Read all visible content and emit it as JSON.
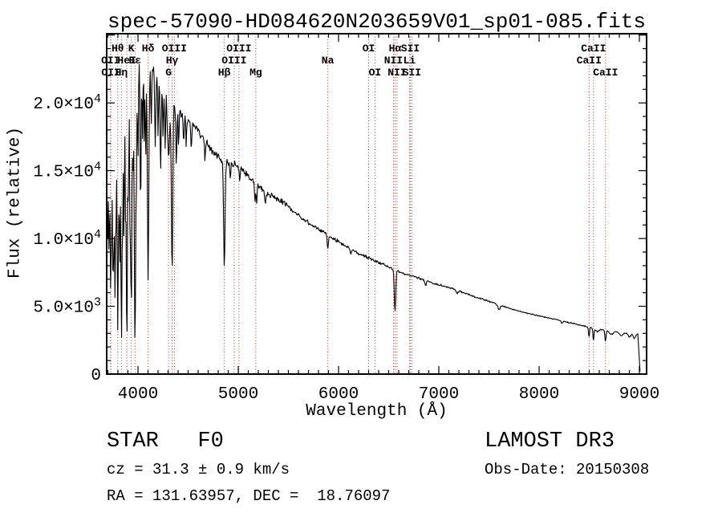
{
  "page": {
    "background": "#ffffff",
    "text_color": "#000000"
  },
  "chart_data": {
    "type": "line",
    "title": "spec-57090-HD084620N203659V01_sp01-085.fits",
    "xlabel": "Wavelength (Å)",
    "ylabel": "Flux (relative)",
    "xlim": [
      3688,
      9072
    ],
    "ylim": [
      0,
      25100
    ],
    "x_major_ticks": [
      4000,
      5000,
      6000,
      7000,
      8000,
      9000
    ],
    "x_minor_step": 100,
    "y_major_ticks": [
      {
        "value": 0,
        "label": "0",
        "exponent": null
      },
      {
        "value": 5000,
        "label": "5.0×10",
        "exponent": "3"
      },
      {
        "value": 10000,
        "label": "1.0×10",
        "exponent": "4"
      },
      {
        "value": 15000,
        "label": "1.5×10",
        "exponent": "4"
      },
      {
        "value": 20000,
        "label": "2.0×10",
        "exponent": "4"
      }
    ],
    "y_minor_step": 1000,
    "grid": false,
    "legend": null,
    "spectral_line_color": "#993333",
    "spectrum_color": "#000000",
    "axis_color": "#000000",
    "spectral_lines": [
      {
        "label": "OII",
        "wavelength": 3726,
        "row": 2
      },
      {
        "label": "OII",
        "wavelength": 3729,
        "row": 3
      },
      {
        "label": "Hθ",
        "wavelength": 3798,
        "row": 1
      },
      {
        "label": "Hη",
        "wavelength": 3835,
        "row": 3
      },
      {
        "label": "HeI",
        "wavelength": 3889,
        "row": 2
      },
      {
        "label": "K",
        "wavelength": 3933,
        "row": 1
      },
      {
        "label": "Hε",
        "wavelength": 3970,
        "row": 2
      },
      {
        "label": "Hδ",
        "wavelength": 4101,
        "row": 1
      },
      {
        "label": "G",
        "wavelength": 4305,
        "row": 3
      },
      {
        "label": "Hγ",
        "wavelength": 4340,
        "row": 2
      },
      {
        "label": "OIII",
        "wavelength": 4363,
        "row": 1
      },
      {
        "label": "Hβ",
        "wavelength": 4861,
        "row": 3
      },
      {
        "label": "OIII",
        "wavelength": 4959,
        "row": 2
      },
      {
        "label": "OIII",
        "wavelength": 5007,
        "row": 1
      },
      {
        "label": "Mg",
        "wavelength": 5175,
        "row": 3
      },
      {
        "label": "Na",
        "wavelength": 5893,
        "row": 2
      },
      {
        "label": "OI",
        "wavelength": 6300,
        "row": 1
      },
      {
        "label": "OI",
        "wavelength": 6363,
        "row": 3
      },
      {
        "label": "NII",
        "wavelength": 6548,
        "row": 2
      },
      {
        "label": "Hα",
        "wavelength": 6563,
        "row": 1
      },
      {
        "label": "NII",
        "wavelength": 6583,
        "row": 3
      },
      {
        "label": "Li",
        "wavelength": 6707,
        "row": 2
      },
      {
        "label": "SII",
        "wavelength": 6716,
        "row": 1
      },
      {
        "label": "SII",
        "wavelength": 6731,
        "row": 3
      },
      {
        "label": "CaII",
        "wavelength": 8498,
        "row": 2
      },
      {
        "label": "CaII",
        "wavelength": 8542,
        "row": 1
      },
      {
        "label": "CaII",
        "wavelength": 8662,
        "row": 3
      }
    ],
    "spectrum": {
      "continuum": [
        [
          3688,
          16000
        ],
        [
          3700,
          19500
        ],
        [
          3720,
          20500
        ],
        [
          3760,
          21000
        ],
        [
          3800,
          21600
        ],
        [
          3850,
          22000
        ],
        [
          3900,
          22300
        ],
        [
          3950,
          22500
        ],
        [
          4000,
          22700
        ],
        [
          4050,
          23000
        ],
        [
          4100,
          22800
        ],
        [
          4150,
          22400
        ],
        [
          4200,
          21700
        ],
        [
          4260,
          20800
        ],
        [
          4320,
          20100
        ],
        [
          4380,
          19700
        ],
        [
          4450,
          19200
        ],
        [
          4550,
          18400
        ],
        [
          4650,
          17400
        ],
        [
          4750,
          16400
        ],
        [
          4850,
          15700
        ],
        [
          4950,
          15500
        ],
        [
          5050,
          15000
        ],
        [
          5175,
          14000
        ],
        [
          5300,
          13300
        ],
        [
          5450,
          12600
        ],
        [
          5600,
          11700
        ],
        [
          5750,
          10900
        ],
        [
          5893,
          10300
        ],
        [
          6050,
          9500
        ],
        [
          6200,
          8900
        ],
        [
          6350,
          8400
        ],
        [
          6500,
          7900
        ],
        [
          6650,
          7400
        ],
        [
          6800,
          7100
        ],
        [
          6950,
          6700
        ],
        [
          7100,
          6400
        ],
        [
          7250,
          6000
        ],
        [
          7400,
          5600
        ],
        [
          7550,
          5250
        ],
        [
          7700,
          4850
        ],
        [
          7850,
          4550
        ],
        [
          8000,
          4300
        ],
        [
          8150,
          4050
        ],
        [
          8300,
          3800
        ],
        [
          8450,
          3550
        ],
        [
          8600,
          3300
        ],
        [
          8750,
          3150
        ],
        [
          8900,
          3050
        ],
        [
          9012,
          2950
        ]
      ],
      "absorption_lines": [
        [
          3697,
          0.45,
          5
        ],
        [
          3712,
          0.55,
          5
        ],
        [
          3727,
          0.65,
          5
        ],
        [
          3737,
          0.4,
          4
        ],
        [
          3750,
          0.65,
          5
        ],
        [
          3760,
          0.45,
          4
        ],
        [
          3771,
          0.7,
          5
        ],
        [
          3782,
          0.4,
          4
        ],
        [
          3798,
          0.88,
          6
        ],
        [
          3812,
          0.35,
          4
        ],
        [
          3820,
          0.5,
          4
        ],
        [
          3835,
          0.88,
          6
        ],
        [
          3848,
          0.4,
          4
        ],
        [
          3860,
          0.55,
          4
        ],
        [
          3875,
          0.45,
          4
        ],
        [
          3889,
          0.9,
          6
        ],
        [
          3905,
          0.4,
          4
        ],
        [
          3920,
          0.45,
          4
        ],
        [
          3933,
          0.82,
          6
        ],
        [
          3950,
          0.35,
          4
        ],
        [
          3970,
          0.92,
          7
        ],
        [
          3985,
          0.3,
          4
        ],
        [
          4000,
          0.3,
          4
        ],
        [
          4026,
          0.45,
          5
        ],
        [
          4045,
          0.25,
          4
        ],
        [
          4063,
          0.25,
          4
        ],
        [
          4077,
          0.3,
          4
        ],
        [
          4101,
          0.7,
          7
        ],
        [
          4132,
          0.2,
          4
        ],
        [
          4172,
          0.25,
          5
        ],
        [
          4200,
          0.18,
          4
        ],
        [
          4226,
          0.3,
          5
        ],
        [
          4250,
          0.15,
          4
        ],
        [
          4271,
          0.2,
          4
        ],
        [
          4305,
          0.22,
          10
        ],
        [
          4340,
          0.62,
          7
        ],
        [
          4383,
          0.22,
          5
        ],
        [
          4405,
          0.15,
          4
        ],
        [
          4455,
          0.12,
          5
        ],
        [
          4481,
          0.12,
          4
        ],
        [
          4531,
          0.1,
          5
        ],
        [
          4668,
          0.08,
          5
        ],
        [
          4861,
          0.5,
          7
        ],
        [
          4920,
          0.08,
          4
        ],
        [
          5015,
          0.06,
          4
        ],
        [
          5167,
          0.08,
          5
        ],
        [
          5183,
          0.1,
          5
        ],
        [
          5270,
          0.07,
          6
        ],
        [
          5893,
          0.1,
          6
        ],
        [
          6122,
          0.04,
          5
        ],
        [
          6563,
          0.4,
          7
        ],
        [
          6867,
          0.06,
          8
        ],
        [
          7180,
          0.04,
          10
        ],
        [
          7600,
          0.07,
          12
        ],
        [
          8227,
          0.04,
          8
        ],
        [
          8498,
          0.22,
          5
        ],
        [
          8542,
          0.28,
          5
        ],
        [
          8580,
          0.06,
          15
        ],
        [
          8662,
          0.25,
          6
        ],
        [
          8720,
          0.08,
          18
        ],
        [
          8820,
          0.09,
          18
        ],
        [
          8900,
          0.1,
          15
        ],
        [
          8950,
          0.12,
          12
        ]
      ],
      "noise_regions": [
        [
          3688,
          3950,
          1100
        ],
        [
          3950,
          4150,
          800
        ],
        [
          4150,
          4500,
          550
        ],
        [
          4500,
          5000,
          380
        ],
        [
          5000,
          5500,
          260
        ],
        [
          5500,
          6000,
          180
        ],
        [
          6000,
          6500,
          130
        ],
        [
          6500,
          7000,
          100
        ],
        [
          7000,
          7600,
          80
        ],
        [
          7600,
          8300,
          60
        ],
        [
          8300,
          9012,
          55
        ]
      ],
      "cutoff": {
        "start": 8985,
        "end": 9008
      }
    }
  },
  "annotations": {
    "class_line": "STAR   F0",
    "cz_line": "cz = 31.3 ± 0.9 km/s",
    "radec_line": "RA = 131.63957, DEC =  18.76097",
    "survey": "LAMOST DR3",
    "obsdate": "Obs-Date: 20150308"
  }
}
